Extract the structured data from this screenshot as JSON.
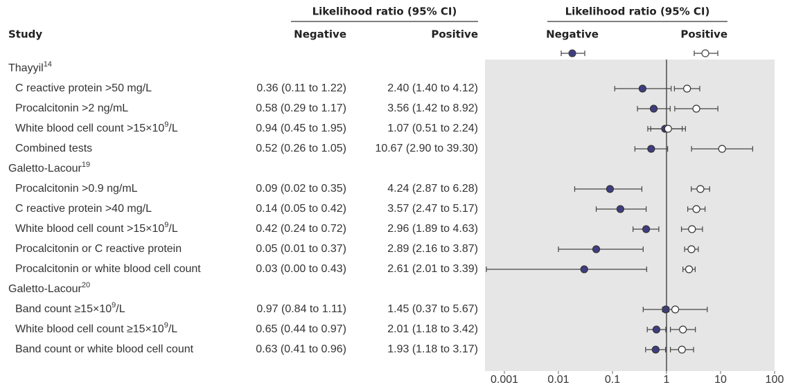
{
  "chart_data": {
    "type": "forest",
    "column_header": "Likelihood ratio (95% CI)",
    "row_header": "Study",
    "log_scale": true,
    "xlim": [
      0.001,
      100
    ],
    "xticks": [
      0.001,
      0.01,
      0.1,
      1,
      10,
      100
    ],
    "reference_line": 1,
    "categories": [
      [
        "Thayyil",
        "14"
      ],
      [
        "C reactive protein >50 mg/L"
      ],
      [
        "Procalcitonin >2 ng/mL"
      ],
      [
        "White blood cell count >15×10",
        "9",
        "/L"
      ],
      [
        "Combined tests"
      ],
      [
        "Galetto-Lacour",
        "19"
      ],
      [
        "Procalcitonin >0.9 ng/mL"
      ],
      [
        "C reactive protein >40 mg/L"
      ],
      [
        "White blood cell count >15×10",
        "9",
        "/L"
      ],
      [
        "Procalcitonin or C reactive protein"
      ],
      [
        "Procalcitonin or white blood cell count"
      ],
      [
        "Galetto-Lacour",
        "20"
      ],
      [
        "Band count ≥15×10",
        "9",
        "/L"
      ],
      [
        "White blood cell count ≥15×10",
        "9",
        "/L"
      ],
      [
        "Band count or white blood cell count"
      ]
    ],
    "series": [
      {
        "name": "Negative",
        "color": "#3f3d82",
        "filled": true,
        "values": [
          null,
          0.36,
          0.58,
          0.94,
          0.52,
          null,
          0.09,
          0.14,
          0.42,
          0.05,
          0.03,
          null,
          0.97,
          0.65,
          0.63
        ],
        "lower": [
          null,
          0.11,
          0.29,
          0.45,
          0.26,
          null,
          0.02,
          0.05,
          0.24,
          0.01,
          0,
          null,
          0.84,
          0.44,
          0.41
        ],
        "upper": [
          null,
          1.22,
          1.17,
          1.95,
          1.05,
          null,
          0.35,
          0.42,
          0.72,
          0.37,
          0.43,
          null,
          1.11,
          0.97,
          0.96
        ],
        "value_labels": [
          null,
          "0.36 (0.11 to 1.22)",
          "0.58 (0.29 to 1.17)",
          "0.94 (0.45 to 1.95)",
          "0.52 (0.26 to 1.05)",
          null,
          "0.09 (0.02 to 0.35)",
          "0.14 (0.05 to 0.42)",
          "0.42 (0.24 to 0.72)",
          "0.05 (0.01 to 0.37)",
          "0.03 (0.00 to 0.43)",
          null,
          "0.97 (0.84 to 1.11)",
          "0.65 (0.44 to 0.97)",
          "0.63 (0.41 to 0.96)"
        ]
      },
      {
        "name": "Positive",
        "color": "#ffffff",
        "filled": false,
        "values": [
          null,
          2.4,
          3.56,
          1.07,
          10.67,
          null,
          4.24,
          3.57,
          2.96,
          2.89,
          2.61,
          null,
          1.45,
          2.01,
          1.93
        ],
        "lower": [
          null,
          1.4,
          1.42,
          0.51,
          2.9,
          null,
          2.87,
          2.47,
          1.89,
          2.16,
          2.01,
          null,
          0.37,
          1.18,
          1.18
        ],
        "upper": [
          null,
          4.12,
          8.92,
          2.24,
          39.3,
          null,
          6.28,
          5.17,
          4.63,
          3.87,
          3.39,
          null,
          5.67,
          3.42,
          3.17
        ],
        "value_labels": [
          null,
          "2.40 (1.40 to 4.12)",
          "3.56 (1.42 to 8.92)",
          "1.07 (0.51 to 2.24)",
          "10.67 (2.90 to 39.30)",
          null,
          "4.24 (2.87 to 6.28)",
          "3.57 (2.47 to 5.17)",
          "2.96 (1.89 to 4.63)",
          "2.89 (2.16 to 3.87)",
          "2.61 (2.01 to 3.39)",
          null,
          "1.45 (0.37 to 5.67)",
          "2.01 (1.18 to 3.42)",
          "1.93 (1.18 to 3.17)"
        ]
      }
    ]
  }
}
